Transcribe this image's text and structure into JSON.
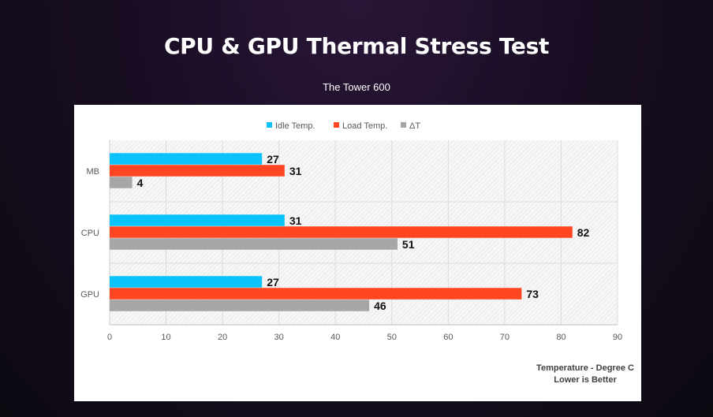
{
  "header": {
    "title": "CPU & GPU Thermal Stress Test",
    "subtitle": "The Tower 600"
  },
  "chart_data": {
    "type": "bar",
    "orientation": "horizontal",
    "categories": [
      "MB",
      "CPU",
      "GPU"
    ],
    "series": [
      {
        "name": "Idle Temp.",
        "color": "#0bc3fb",
        "values": [
          27,
          31,
          27
        ]
      },
      {
        "name": "Load Temp.",
        "color": "#ff4522",
        "values": [
          31,
          82,
          73
        ]
      },
      {
        "name": "ΔT",
        "color": "#a6a6a6",
        "values": [
          4,
          51,
          46
        ]
      }
    ],
    "xticks": [
      0,
      10,
      20,
      30,
      40,
      50,
      60,
      70,
      80,
      90
    ],
    "xlim": [
      0,
      90
    ],
    "xlabel": "Temperature - Degree C",
    "note": "Lower is Better",
    "legend": "top-center",
    "grid": true
  }
}
